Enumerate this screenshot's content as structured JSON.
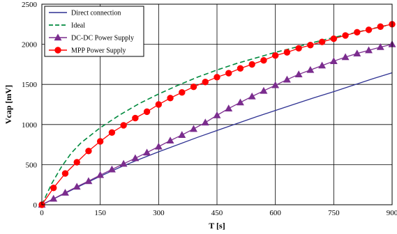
{
  "chart_data": {
    "type": "line",
    "title": "",
    "xlabel": "T [s]",
    "ylabel": "Vcap [mV]",
    "xlim": [
      0,
      900
    ],
    "ylim": [
      0,
      2500
    ],
    "xticks": [
      "0",
      "150",
      "300",
      "450",
      "600",
      "750",
      "900"
    ],
    "yticks": [
      "0",
      "500",
      "1000",
      "1500",
      "2000",
      "2500"
    ],
    "grid": true,
    "legend_position": "top-left",
    "series": [
      {
        "name": "Direct connection",
        "color": "#2e3192",
        "style": "solid",
        "marker": "none",
        "x": [
          0,
          50,
          100,
          150,
          200,
          250,
          300,
          350,
          400,
          450,
          500,
          550,
          600,
          650,
          700,
          750,
          800,
          850,
          900
        ],
        "y": [
          0,
          120,
          240,
          355,
          465,
          565,
          660,
          750,
          840,
          925,
          1010,
          1095,
          1175,
          1255,
          1335,
          1410,
          1490,
          1570,
          1645
        ]
      },
      {
        "name": "Ideal",
        "color": "#008a3e",
        "style": "dashed",
        "marker": "none",
        "x": [
          0,
          25,
          50,
          75,
          100,
          150,
          200,
          250,
          300,
          350,
          400,
          450,
          500,
          550,
          600,
          650,
          700,
          750,
          800,
          850,
          900
        ],
        "y": [
          0,
          260,
          470,
          640,
          770,
          960,
          1120,
          1260,
          1380,
          1490,
          1590,
          1680,
          1760,
          1830,
          1900,
          1960,
          2025,
          2085,
          2140,
          2195,
          2250
        ]
      },
      {
        "name": "DC-DC Power Supply",
        "color": "#7b2d8e",
        "style": "solid",
        "marker": "triangle",
        "x": [
          0,
          30,
          60,
          90,
          120,
          150,
          180,
          210,
          240,
          270,
          300,
          330,
          360,
          390,
          420,
          450,
          480,
          510,
          540,
          570,
          600,
          630,
          660,
          690,
          720,
          750,
          780,
          810,
          840,
          870,
          900
        ],
        "y": [
          0,
          75,
          150,
          225,
          295,
          370,
          440,
          510,
          580,
          650,
          725,
          800,
          870,
          945,
          1025,
          1115,
          1200,
          1275,
          1350,
          1420,
          1490,
          1560,
          1625,
          1680,
          1735,
          1790,
          1840,
          1885,
          1925,
          1965,
          2000
        ]
      },
      {
        "name": "MPP Power Supply",
        "color": "#ff0000",
        "style": "solid",
        "marker": "circle",
        "x": [
          0,
          30,
          60,
          90,
          120,
          150,
          180,
          210,
          240,
          270,
          300,
          330,
          360,
          390,
          420,
          450,
          480,
          510,
          540,
          570,
          600,
          630,
          660,
          690,
          720,
          750,
          780,
          810,
          840,
          870,
          900
        ],
        "y": [
          0,
          210,
          390,
          530,
          670,
          790,
          900,
          990,
          1080,
          1160,
          1250,
          1330,
          1400,
          1470,
          1530,
          1590,
          1640,
          1700,
          1750,
          1800,
          1860,
          1900,
          1950,
          1990,
          2030,
          2070,
          2110,
          2150,
          2180,
          2220,
          2250
        ]
      }
    ]
  }
}
